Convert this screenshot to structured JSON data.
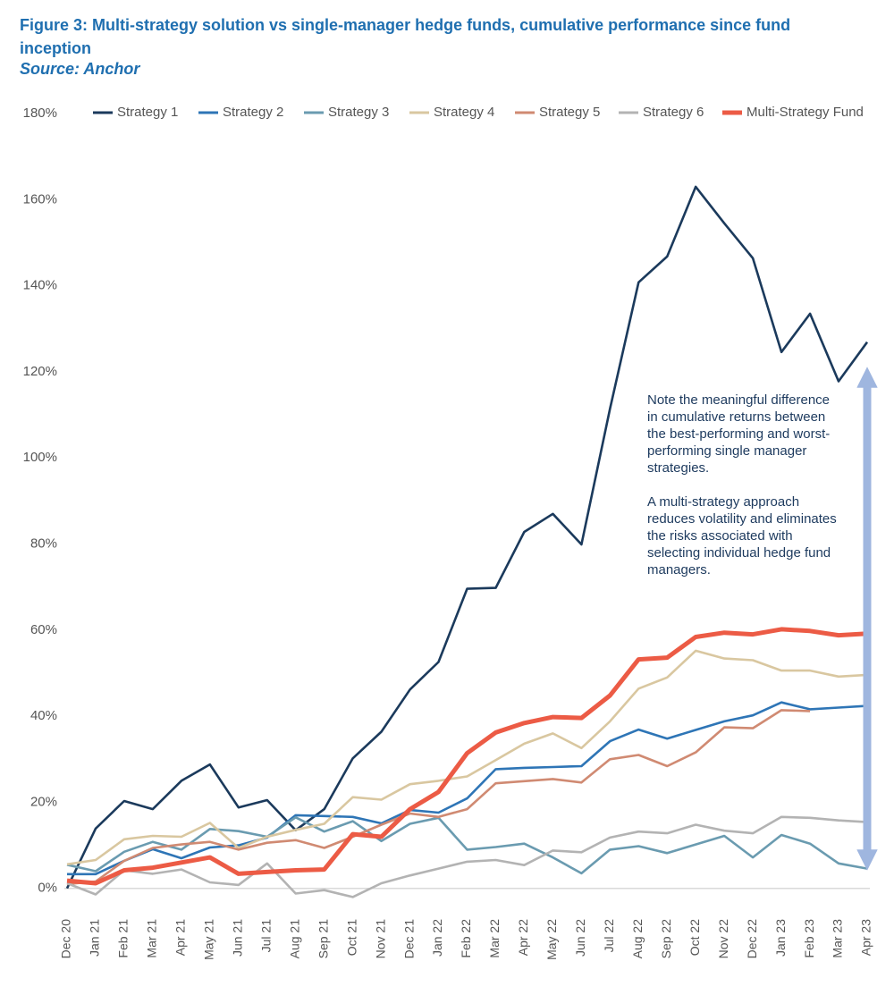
{
  "chart_data": {
    "type": "line",
    "title": "Figure 3: Multi-strategy solution vs single-manager hedge funds, cumulative performance since fund inception",
    "subtitle": "Source: Anchor",
    "annotations": [
      "Note the meaningful difference in cumulative returns between the best-performing and worst-performing single manager strategies.",
      "A multi-strategy approach reduces volatility and eliminates the risks associated with selecting individual hedge fund managers."
    ],
    "categories": [
      "Dec 20",
      "Jan 21",
      "Feb 21",
      "Mar 21",
      "Apr 21",
      "May 21",
      "Jun 21",
      "Jul 21",
      "Aug 21",
      "Sep 21",
      "Oct 21",
      "Nov 21",
      "Dec 21",
      "Jan 22",
      "Feb 22",
      "Mar 22",
      "Apr 22",
      "May 22",
      "Jun 22",
      "Jul 22",
      "Aug 22",
      "Sep 22",
      "Oct 22",
      "Nov 22",
      "Dec 22",
      "Jan 23",
      "Feb 23",
      "Mar 23",
      "Apr 23"
    ],
    "series": [
      {
        "name": "Strategy 1",
        "color": "#1b3a5c",
        "values": [
          0,
          13.9,
          20.3,
          18.4,
          25,
          28.8,
          18.8,
          20.5,
          13.5,
          18.4,
          30.2,
          36.4,
          46.2,
          52.6,
          69.6,
          69.8,
          82.8,
          87,
          79.9,
          111.4,
          140.8,
          146.8,
          163,
          154.5,
          146.4,
          124.6,
          133.5,
          117.8,
          126.9
        ]
      },
      {
        "name": "Strategy 2",
        "color": "#2e75b6",
        "values": [
          3.3,
          3.3,
          6.4,
          9.1,
          7,
          9.5,
          10,
          11.8,
          17,
          16.8,
          16.6,
          15.1,
          18.2,
          17.6,
          20.9,
          27.7,
          28,
          28.2,
          28.4,
          34.2,
          36.9,
          34.8,
          36.8,
          38.8,
          40.2,
          43.2,
          41.6,
          42,
          42.4
        ]
      },
      {
        "name": "Strategy 3",
        "color": "#6a9bb0",
        "values": [
          5.5,
          4,
          8.5,
          10.8,
          9,
          13.8,
          13.3,
          12,
          16.5,
          13.2,
          15.6,
          11,
          15,
          16.4,
          9,
          9.6,
          10.4,
          7.2,
          3.5,
          9,
          9.8,
          8.2,
          10.2,
          12.2,
          7.2,
          12.4,
          10.4,
          5.8,
          4.6
        ]
      },
      {
        "name": "Strategy 4",
        "color": "#d9c7a0",
        "values": [
          5.6,
          6.6,
          11.4,
          12.2,
          12,
          15.2,
          9.4,
          12,
          13.6,
          15,
          21.2,
          20.6,
          24.2,
          25,
          26,
          29.8,
          33.6,
          36,
          32.6,
          38.8,
          46.4,
          49,
          55.2,
          53.4,
          53,
          50.6,
          50.6,
          49.2,
          49.6
        ]
      },
      {
        "name": "Strategy 5",
        "color": "#d08a72",
        "values": [
          1,
          1.6,
          6.4,
          9.4,
          10.2,
          10.8,
          9,
          10.6,
          11.2,
          9.4,
          12,
          14.8,
          17.4,
          16.6,
          18.4,
          24.4,
          24.9,
          25.4,
          24.6,
          30,
          31,
          28.4,
          31.6,
          37.4,
          37.2,
          41.4,
          41.2,
          null,
          null
        ]
      },
      {
        "name": "Strategy 6",
        "color": "#b3b3b3",
        "values": [
          1.2,
          -1.4,
          4.2,
          3.4,
          4.4,
          1.4,
          0.8,
          5.8,
          -1.2,
          -0.4,
          -2,
          1.2,
          3,
          4.6,
          6.2,
          6.6,
          5.4,
          8.8,
          8.4,
          11.8,
          13.2,
          12.8,
          14.8,
          13.4,
          12.8,
          16.6,
          16.4,
          15.8,
          15.4
        ]
      },
      {
        "name": "Multi-Strategy Fund",
        "color": "#ec5b45",
        "values": [
          1.8,
          1.2,
          4.2,
          4.8,
          6,
          7.2,
          3.4,
          3.8,
          4.2,
          4.4,
          12.6,
          12,
          18.4,
          22.4,
          31.4,
          36.2,
          38.4,
          39.8,
          39.6,
          44.8,
          53.2,
          53.6,
          58.4,
          59.4,
          59,
          60.2,
          59.8,
          58.8,
          59.2
        ]
      }
    ],
    "ylim": [
      -4,
      180
    ],
    "yticks": [
      {
        "value": 0,
        "label": "0%"
      },
      {
        "value": 20,
        "label": "20%"
      },
      {
        "value": 40,
        "label": "40%"
      },
      {
        "value": 60,
        "label": "60%"
      },
      {
        "value": 80,
        "label": "80%"
      },
      {
        "value": 100,
        "label": "100%"
      },
      {
        "value": 120,
        "label": "120%"
      },
      {
        "value": 140,
        "label": "140%"
      },
      {
        "value": 160,
        "label": "160%"
      },
      {
        "value": 180,
        "label": "180%"
      }
    ],
    "grid": false,
    "legend": "top"
  }
}
